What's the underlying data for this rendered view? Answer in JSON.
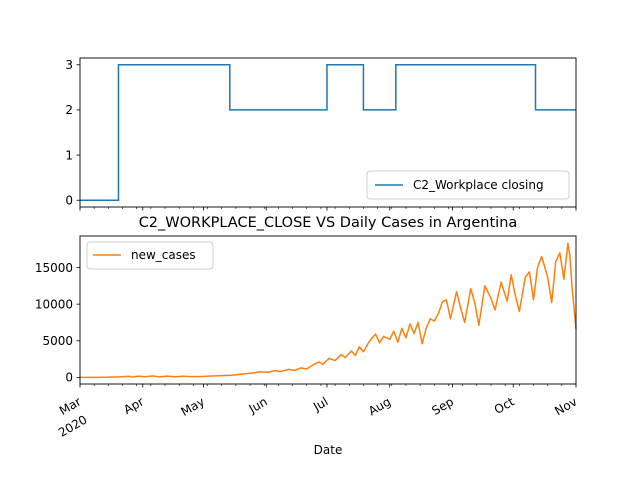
{
  "chart_data": [
    {
      "type": "line",
      "title": "",
      "xlabel": "",
      "ylabel": "",
      "ylim": [
        -0.15,
        3.15
      ],
      "yticks": [
        0,
        1,
        2,
        3
      ],
      "legend_position": "lower-right",
      "grid": false,
      "series": [
        {
          "name": "C2_Workplace closing",
          "color": "#1f77b4",
          "step": true,
          "points": [
            [
              "2020-03-01",
              0
            ],
            [
              "2020-03-20",
              3
            ],
            [
              "2020-05-14",
              2
            ],
            [
              "2020-07-01",
              3
            ],
            [
              "2020-07-19",
              2
            ],
            [
              "2020-08-04",
              3
            ],
            [
              "2020-10-12",
              2
            ],
            [
              "2020-11-01",
              2
            ]
          ]
        }
      ]
    },
    {
      "type": "line",
      "title": "C2_WORKPLACE_CLOSE VS Daily Cases in Argentina",
      "xlabel": "Date",
      "ylabel": "",
      "ylim": [
        -900,
        19300
      ],
      "yticks": [
        0,
        5000,
        10000,
        15000
      ],
      "ytick_labels": [
        "0",
        "5000",
        "10000",
        "15000"
      ],
      "xticks": [
        "2020-03-01",
        "2020-04-01",
        "2020-05-01",
        "2020-06-01",
        "2020-07-01",
        "2020-08-01",
        "2020-09-01",
        "2020-10-01",
        "2020-11-01"
      ],
      "xtick_labels": [
        "Mar",
        "Apr",
        "May",
        "Jun",
        "Jul",
        "Aug",
        "Sep",
        "Oct",
        "Nov"
      ],
      "xtick_year": "2020",
      "legend_position": "upper-left",
      "grid": false,
      "series": [
        {
          "name": "new_cases",
          "color": "#ff7f0e",
          "points": [
            [
              "2020-03-01",
              0
            ],
            [
              "2020-03-10",
              10
            ],
            [
              "2020-03-20",
              80
            ],
            [
              "2020-03-25",
              150
            ],
            [
              "2020-03-27",
              60
            ],
            [
              "2020-03-30",
              180
            ],
            [
              "2020-04-02",
              90
            ],
            [
              "2020-04-06",
              200
            ],
            [
              "2020-04-09",
              80
            ],
            [
              "2020-04-13",
              180
            ],
            [
              "2020-04-17",
              90
            ],
            [
              "2020-04-21",
              160
            ],
            [
              "2020-04-25",
              100
            ],
            [
              "2020-04-30",
              130
            ],
            [
              "2020-05-05",
              200
            ],
            [
              "2020-05-10",
              250
            ],
            [
              "2020-05-15",
              300
            ],
            [
              "2020-05-20",
              450
            ],
            [
              "2020-05-25",
              600
            ],
            [
              "2020-05-29",
              750
            ],
            [
              "2020-06-02",
              700
            ],
            [
              "2020-06-05",
              930
            ],
            [
              "2020-06-08",
              800
            ],
            [
              "2020-06-12",
              1100
            ],
            [
              "2020-06-15",
              950
            ],
            [
              "2020-06-18",
              1300
            ],
            [
              "2020-06-21",
              1150
            ],
            [
              "2020-06-24",
              1700
            ],
            [
              "2020-06-27",
              2100
            ],
            [
              "2020-06-29",
              1800
            ],
            [
              "2020-07-02",
              2600
            ],
            [
              "2020-07-05",
              2300
            ],
            [
              "2020-07-08",
              3100
            ],
            [
              "2020-07-10",
              2700
            ],
            [
              "2020-07-13",
              3600
            ],
            [
              "2020-07-15",
              3000
            ],
            [
              "2020-07-17",
              4200
            ],
            [
              "2020-07-19",
              3500
            ],
            [
              "2020-07-21",
              4500
            ],
            [
              "2020-07-23",
              5300
            ],
            [
              "2020-07-25",
              5900
            ],
            [
              "2020-07-27",
              4700
            ],
            [
              "2020-07-29",
              5600
            ],
            [
              "2020-08-01",
              5200
            ],
            [
              "2020-08-03",
              6300
            ],
            [
              "2020-08-05",
              4800
            ],
            [
              "2020-08-07",
              6700
            ],
            [
              "2020-08-09",
              5400
            ],
            [
              "2020-08-11",
              7300
            ],
            [
              "2020-08-13",
              6000
            ],
            [
              "2020-08-15",
              7500
            ],
            [
              "2020-08-17",
              4600
            ],
            [
              "2020-08-19",
              6700
            ],
            [
              "2020-08-21",
              8000
            ],
            [
              "2020-08-23",
              7700
            ],
            [
              "2020-08-25",
              8700
            ],
            [
              "2020-08-27",
              10300
            ],
            [
              "2020-08-29",
              10600
            ],
            [
              "2020-08-31",
              8000
            ],
            [
              "2020-09-03",
              11700
            ],
            [
              "2020-09-05",
              9500
            ],
            [
              "2020-09-07",
              7500
            ],
            [
              "2020-09-10",
              12100
            ],
            [
              "2020-09-12",
              10200
            ],
            [
              "2020-09-14",
              7100
            ],
            [
              "2020-09-17",
              12500
            ],
            [
              "2020-09-20",
              10800
            ],
            [
              "2020-09-22",
              9200
            ],
            [
              "2020-09-25",
              13000
            ],
            [
              "2020-09-28",
              10400
            ],
            [
              "2020-09-30",
              14000
            ],
            [
              "2020-10-02",
              11200
            ],
            [
              "2020-10-04",
              9000
            ],
            [
              "2020-10-07",
              13700
            ],
            [
              "2020-10-09",
              14400
            ],
            [
              "2020-10-11",
              10600
            ],
            [
              "2020-10-13",
              15000
            ],
            [
              "2020-10-15",
              16500
            ],
            [
              "2020-10-18",
              13700
            ],
            [
              "2020-10-20",
              10200
            ],
            [
              "2020-10-22",
              15800
            ],
            [
              "2020-10-24",
              17000
            ],
            [
              "2020-10-26",
              13400
            ],
            [
              "2020-10-28",
              18300
            ],
            [
              "2020-10-29",
              16600
            ],
            [
              "2020-10-30",
              12400
            ],
            [
              "2020-10-31",
              9600
            ],
            [
              "2020-11-01",
              6600
            ]
          ]
        }
      ]
    }
  ]
}
